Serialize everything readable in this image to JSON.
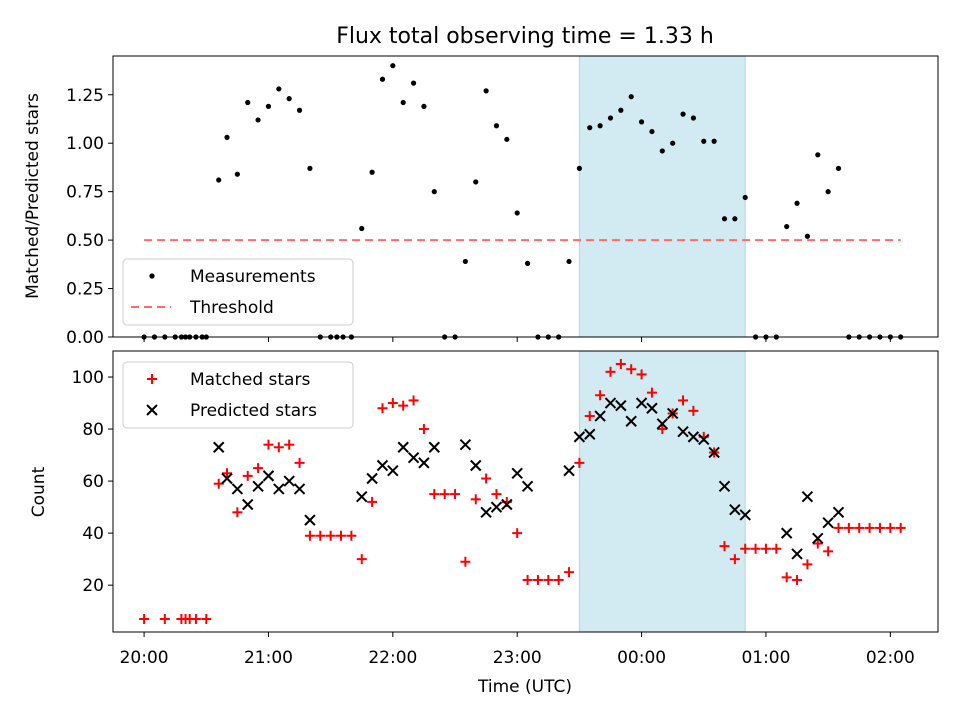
{
  "chart_data": [
    {
      "type": "scatter",
      "title": "Flux total observing time = 1.33 h",
      "xlabel": "",
      "ylabel": "Matched/Predicted stars",
      "xlim": [
        "19:45",
        "02:23"
      ],
      "ylim": [
        0,
        1.45
      ],
      "yticks": [
        "0.00",
        "0.25",
        "0.50",
        "0.75",
        "1.00",
        "1.25"
      ],
      "xticks": [
        "20:00",
        "21:00",
        "22:00",
        "23:00",
        "00:00",
        "01:00",
        "02:00"
      ],
      "grid": false,
      "legend_position": "lower-left",
      "shaded_region": {
        "start": "23:30",
        "end": "00:50",
        "color": "#add8e6"
      },
      "colors": {
        "measurements": "#000000",
        "threshold": "#ff6b6b",
        "shade": "#add8e6"
      },
      "series": [
        {
          "name": "Measurements",
          "kind": "scatter",
          "marker": "dot",
          "points": [
            [
              "20:00",
              0
            ],
            [
              "20:05",
              0
            ],
            [
              "20:10",
              0
            ],
            [
              "20:15",
              0
            ],
            [
              "20:18",
              0
            ],
            [
              "20:20",
              0
            ],
            [
              "20:22",
              0
            ],
            [
              "20:25",
              0
            ],
            [
              "20:28",
              0
            ],
            [
              "20:30",
              0
            ],
            [
              "20:36",
              0.81
            ],
            [
              "20:40",
              1.03
            ],
            [
              "20:45",
              0.84
            ],
            [
              "20:50",
              1.21
            ],
            [
              "20:55",
              1.12
            ],
            [
              "21:00",
              1.19
            ],
            [
              "21:05",
              1.28
            ],
            [
              "21:10",
              1.23
            ],
            [
              "21:15",
              1.17
            ],
            [
              "21:20",
              0.87
            ],
            [
              "21:25",
              0
            ],
            [
              "21:30",
              0
            ],
            [
              "21:33",
              0
            ],
            [
              "21:36",
              0
            ],
            [
              "21:40",
              0
            ],
            [
              "21:45",
              0.56
            ],
            [
              "21:50",
              0.85
            ],
            [
              "21:55",
              1.33
            ],
            [
              "22:00",
              1.4
            ],
            [
              "22:05",
              1.21
            ],
            [
              "22:10",
              1.31
            ],
            [
              "22:15",
              1.19
            ],
            [
              "22:20",
              0.75
            ],
            [
              "22:25",
              0
            ],
            [
              "22:30",
              0
            ],
            [
              "22:35",
              0.39
            ],
            [
              "22:40",
              0.8
            ],
            [
              "22:45",
              1.27
            ],
            [
              "22:50",
              1.09
            ],
            [
              "22:55",
              1.02
            ],
            [
              "23:00",
              0.64
            ],
            [
              "23:05",
              0.38
            ],
            [
              "23:10",
              0
            ],
            [
              "23:15",
              0
            ],
            [
              "23:20",
              0
            ],
            [
              "23:25",
              0.39
            ],
            [
              "23:30",
              0.87
            ],
            [
              "23:35",
              1.08
            ],
            [
              "23:40",
              1.09
            ],
            [
              "23:45",
              1.13
            ],
            [
              "23:50",
              1.17
            ],
            [
              "23:55",
              1.24
            ],
            [
              "00:00",
              1.11
            ],
            [
              "00:05",
              1.06
            ],
            [
              "00:10",
              0.96
            ],
            [
              "00:15",
              1.0
            ],
            [
              "00:20",
              1.15
            ],
            [
              "00:25",
              1.13
            ],
            [
              "00:30",
              1.01
            ],
            [
              "00:35",
              1.01
            ],
            [
              "00:40",
              0.61
            ],
            [
              "00:45",
              0.61
            ],
            [
              "00:50",
              0.72
            ],
            [
              "00:55",
              0
            ],
            [
              "01:00",
              0
            ],
            [
              "01:05",
              0
            ],
            [
              "01:10",
              0.57
            ],
            [
              "01:15",
              0.69
            ],
            [
              "01:20",
              0.52
            ],
            [
              "01:25",
              0.94
            ],
            [
              "01:30",
              0.75
            ],
            [
              "01:35",
              0.87
            ],
            [
              "01:40",
              0
            ],
            [
              "01:45",
              0
            ],
            [
              "01:50",
              0
            ],
            [
              "01:55",
              0
            ],
            [
              "02:00",
              0
            ],
            [
              "02:05",
              0
            ]
          ]
        },
        {
          "name": "Threshold",
          "kind": "dashed-line",
          "points": [
            [
              "20:00",
              0.5
            ],
            [
              "02:05",
              0.5
            ]
          ]
        }
      ]
    },
    {
      "type": "scatter",
      "title": "",
      "xlabel": "Time (UTC)",
      "ylabel": "Count",
      "xlim": [
        "19:45",
        "02:23"
      ],
      "ylim": [
        2,
        110
      ],
      "yticks": [
        "20",
        "40",
        "60",
        "80",
        "100"
      ],
      "xticks": [
        "20:00",
        "21:00",
        "22:00",
        "23:00",
        "00:00",
        "01:00",
        "02:00"
      ],
      "grid": false,
      "legend_position": "upper-left",
      "shaded_region": {
        "start": "23:30",
        "end": "00:50",
        "color": "#add8e6"
      },
      "colors": {
        "matched": "#ff0000",
        "predicted": "#000000"
      },
      "series": [
        {
          "name": "Matched stars",
          "kind": "scatter",
          "marker": "plus",
          "points": [
            [
              "20:00",
              7
            ],
            [
              "20:10",
              7
            ],
            [
              "20:18",
              7
            ],
            [
              "20:20",
              7
            ],
            [
              "20:22",
              7
            ],
            [
              "20:25",
              7
            ],
            [
              "20:30",
              7
            ],
            [
              "20:36",
              59
            ],
            [
              "20:40",
              63
            ],
            [
              "20:45",
              48
            ],
            [
              "20:50",
              62
            ],
            [
              "20:55",
              65
            ],
            [
              "21:00",
              74
            ],
            [
              "21:05",
              73
            ],
            [
              "21:10",
              74
            ],
            [
              "21:15",
              67
            ],
            [
              "21:20",
              39
            ],
            [
              "21:25",
              39
            ],
            [
              "21:30",
              39
            ],
            [
              "21:35",
              39
            ],
            [
              "21:40",
              39
            ],
            [
              "21:45",
              30
            ],
            [
              "21:50",
              52
            ],
            [
              "21:55",
              88
            ],
            [
              "22:00",
              90
            ],
            [
              "22:05",
              89
            ],
            [
              "22:10",
              91
            ],
            [
              "22:15",
              80
            ],
            [
              "22:20",
              55
            ],
            [
              "22:25",
              55
            ],
            [
              "22:30",
              55
            ],
            [
              "22:35",
              29
            ],
            [
              "22:40",
              53
            ],
            [
              "22:45",
              61
            ],
            [
              "22:50",
              55
            ],
            [
              "22:55",
              52
            ],
            [
              "23:00",
              40
            ],
            [
              "23:05",
              22
            ],
            [
              "23:10",
              22
            ],
            [
              "23:15",
              22
            ],
            [
              "23:20",
              22
            ],
            [
              "23:25",
              25
            ],
            [
              "23:30",
              67
            ],
            [
              "23:35",
              85
            ],
            [
              "23:40",
              93
            ],
            [
              "23:45",
              102
            ],
            [
              "23:50",
              105
            ],
            [
              "23:55",
              103
            ],
            [
              "00:00",
              101
            ],
            [
              "00:05",
              94
            ],
            [
              "00:10",
              80
            ],
            [
              "00:15",
              86
            ],
            [
              "00:20",
              91
            ],
            [
              "00:25",
              87
            ],
            [
              "00:30",
              77
            ],
            [
              "00:35",
              71
            ],
            [
              "00:40",
              35
            ],
            [
              "00:45",
              30
            ],
            [
              "00:50",
              34
            ],
            [
              "00:55",
              34
            ],
            [
              "01:00",
              34
            ],
            [
              "01:05",
              34
            ],
            [
              "01:10",
              23
            ],
            [
              "01:15",
              22
            ],
            [
              "01:20",
              28
            ],
            [
              "01:25",
              36
            ],
            [
              "01:30",
              33
            ],
            [
              "01:35",
              42
            ],
            [
              "01:40",
              42
            ],
            [
              "01:45",
              42
            ],
            [
              "01:50",
              42
            ],
            [
              "01:55",
              42
            ],
            [
              "02:00",
              42
            ],
            [
              "02:05",
              42
            ]
          ]
        },
        {
          "name": "Predicted stars",
          "kind": "scatter",
          "marker": "x",
          "points": [
            [
              "20:36",
              73
            ],
            [
              "20:40",
              61
            ],
            [
              "20:45",
              57
            ],
            [
              "20:50",
              51
            ],
            [
              "20:55",
              58
            ],
            [
              "21:00",
              62
            ],
            [
              "21:05",
              57
            ],
            [
              "21:10",
              60
            ],
            [
              "21:15",
              57
            ],
            [
              "21:20",
              45
            ],
            [
              "21:45",
              54
            ],
            [
              "21:50",
              61
            ],
            [
              "21:55",
              66
            ],
            [
              "22:00",
              64
            ],
            [
              "22:05",
              73
            ],
            [
              "22:10",
              69
            ],
            [
              "22:15",
              67
            ],
            [
              "22:20",
              73
            ],
            [
              "22:35",
              74
            ],
            [
              "22:40",
              66
            ],
            [
              "22:45",
              48
            ],
            [
              "22:50",
              50
            ],
            [
              "22:55",
              51
            ],
            [
              "23:00",
              63
            ],
            [
              "23:05",
              58
            ],
            [
              "23:25",
              64
            ],
            [
              "23:30",
              77
            ],
            [
              "23:35",
              78
            ],
            [
              "23:40",
              85
            ],
            [
              "23:45",
              90
            ],
            [
              "23:50",
              89
            ],
            [
              "23:55",
              83
            ],
            [
              "00:00",
              90
            ],
            [
              "00:05",
              88
            ],
            [
              "00:10",
              82
            ],
            [
              "00:15",
              86
            ],
            [
              "00:20",
              79
            ],
            [
              "00:25",
              77
            ],
            [
              "00:30",
              76
            ],
            [
              "00:35",
              71
            ],
            [
              "00:40",
              58
            ],
            [
              "00:45",
              49
            ],
            [
              "00:50",
              47
            ],
            [
              "01:10",
              40
            ],
            [
              "01:15",
              32
            ],
            [
              "01:20",
              54
            ],
            [
              "01:25",
              38
            ],
            [
              "01:30",
              44
            ],
            [
              "01:35",
              48
            ]
          ]
        }
      ]
    }
  ]
}
